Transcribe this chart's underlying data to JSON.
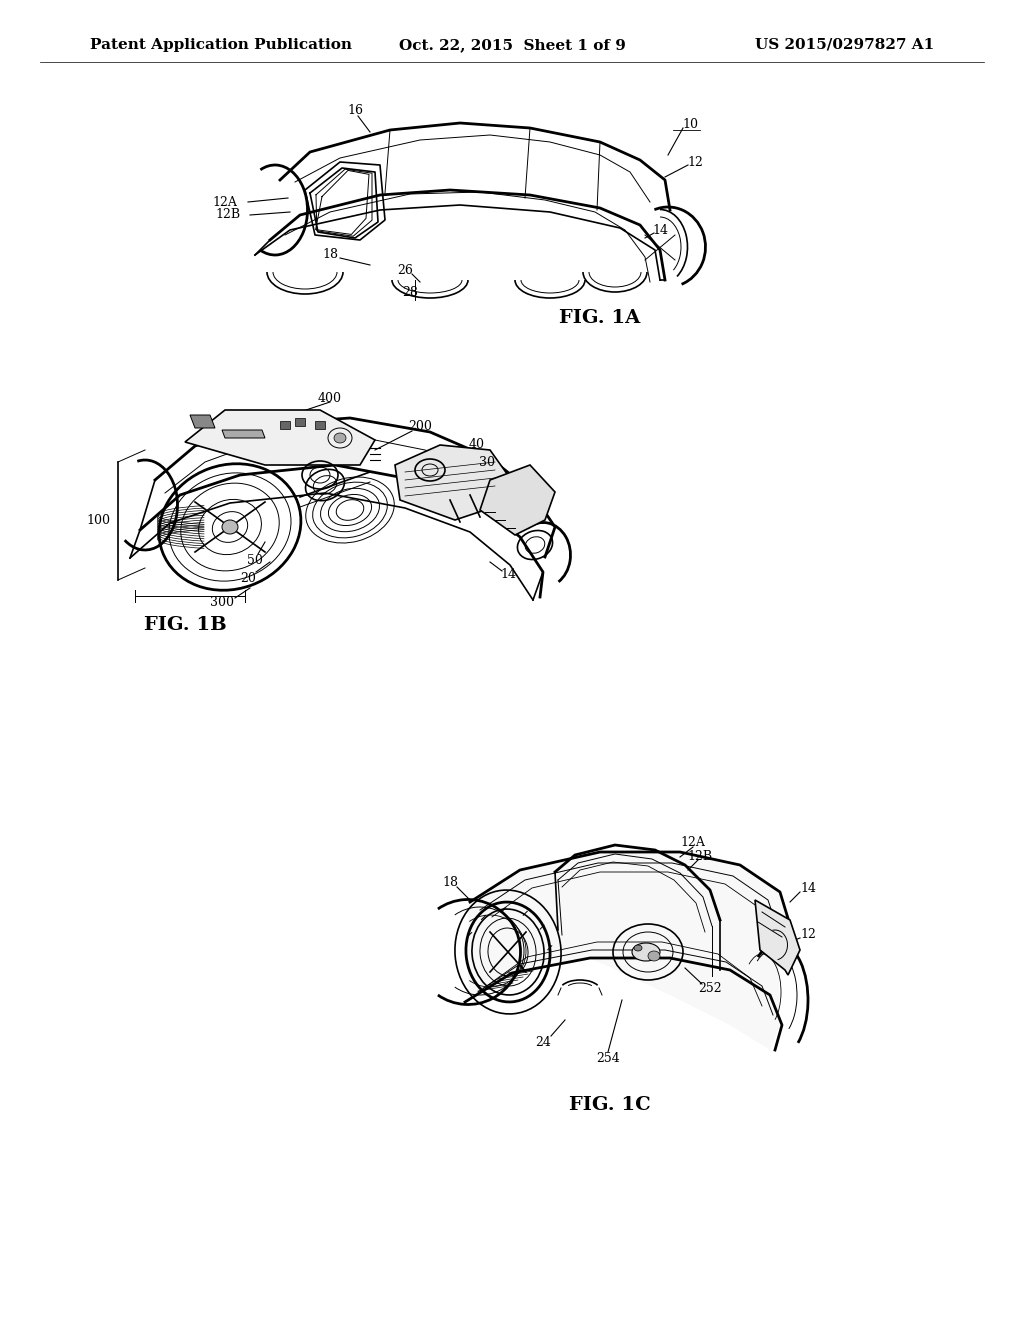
{
  "background_color": "#ffffff",
  "line_color": "#000000",
  "header_left": "Patent Application Publication",
  "header_center": "Oct. 22, 2015  Sheet 1 of 9",
  "header_right": "US 2015/0297827 A1",
  "header_fontsize": 11,
  "annotation_fontsize": 9,
  "fig_label_fontsize": 14,
  "fig1a_label": "FIG. 1A",
  "fig1b_label": "FIG. 1B",
  "fig1c_label": "FIG. 1C"
}
